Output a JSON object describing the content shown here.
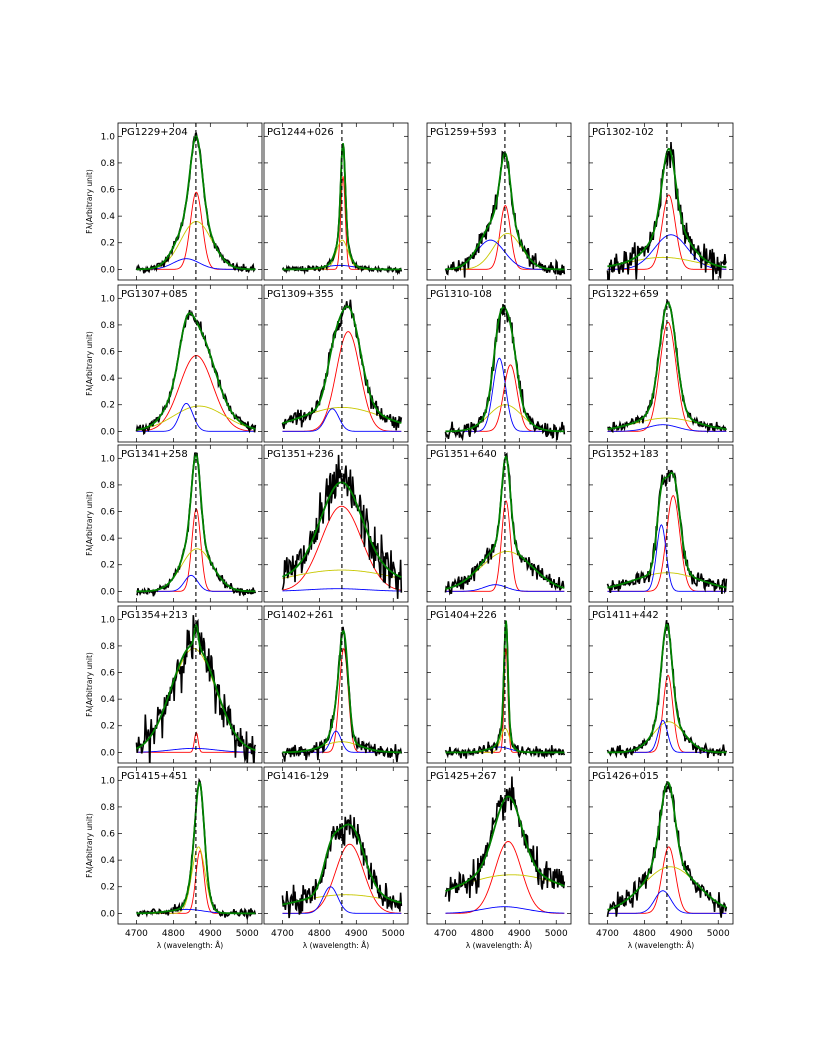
{
  "figure": {
    "ylabel_text": "Fλ(Arbitrary unit)",
    "xlabel_text": "λ (wavelength: Å)"
  },
  "chart_data": {
    "type": "line",
    "layout": "grid of 5 rows by 4 columns of small-multiple panels",
    "xlim": [
      4650,
      5040
    ],
    "ylim": [
      -0.08,
      1.1
    ],
    "xticks": [
      4700,
      4800,
      4900,
      5000
    ],
    "yticks": [
      0.0,
      0.2,
      0.4,
      0.6,
      0.8,
      1.0
    ],
    "reference_line": {
      "x": 4861,
      "style": "dashed",
      "color": "#000000"
    },
    "grid": false,
    "legend": "none",
    "colors": {
      "observed": "#000000",
      "total_fit": "#008000",
      "narrow_component": "#ff0000",
      "broad_component": "#c8c800",
      "blue_component": "#0000ff"
    },
    "panels": [
      {
        "name": "PG1229+204",
        "obs_noise": 0.015,
        "components": [
          {
            "role": "narrow",
            "color": "#ff0000",
            "center": 4862,
            "amp": 0.58,
            "sigma": 16
          },
          {
            "role": "broad",
            "color": "#c8c800",
            "center": 4862,
            "amp": 0.36,
            "sigma": 42
          },
          {
            "role": "blue",
            "color": "#0000ff",
            "center": 4835,
            "amp": 0.08,
            "sigma": 35
          }
        ]
      },
      {
        "name": "PG1244+026",
        "obs_noise": 0.012,
        "components": [
          {
            "role": "narrow",
            "color": "#ff0000",
            "center": 4864,
            "amp": 0.7,
            "sigma": 6
          },
          {
            "role": "broad",
            "color": "#c8c800",
            "center": 4862,
            "amp": 0.22,
            "sigma": 16
          },
          {
            "role": "blue",
            "color": "#0000ff",
            "center": 4855,
            "amp": 0.03,
            "sigma": 40
          }
        ]
      },
      {
        "name": "PG1259+593",
        "obs_noise": 0.03,
        "components": [
          {
            "role": "narrow",
            "color": "#ff0000",
            "center": 4862,
            "amp": 0.48,
            "sigma": 14
          },
          {
            "role": "broad",
            "color": "#c8c800",
            "center": 4868,
            "amp": 0.27,
            "sigma": 38
          },
          {
            "role": "blue",
            "color": "#0000ff",
            "center": 4822,
            "amp": 0.22,
            "sigma": 38
          }
        ]
      },
      {
        "name": "PG1302-102",
        "obs_noise": 0.05,
        "components": [
          {
            "role": "narrow",
            "color": "#ff0000",
            "center": 4866,
            "amp": 0.56,
            "sigma": 18
          },
          {
            "role": "broad",
            "color": "#c8c800",
            "center": 4850,
            "amp": 0.09,
            "sigma": 90
          },
          {
            "role": "blue",
            "color": "#0000ff",
            "center": 4872,
            "amp": 0.26,
            "sigma": 45
          }
        ]
      },
      {
        "name": "PG1307+085",
        "obs_noise": 0.02,
        "components": [
          {
            "role": "narrow",
            "color": "#ff0000",
            "center": 4862,
            "amp": 0.57,
            "sigma": 45
          },
          {
            "role": "broad",
            "color": "#c8c800",
            "center": 4870,
            "amp": 0.19,
            "sigma": 70
          },
          {
            "role": "blue",
            "color": "#0000ff",
            "center": 4835,
            "amp": 0.21,
            "sigma": 18
          }
        ]
      },
      {
        "name": "PG1309+355",
        "obs_noise": 0.03,
        "components": [
          {
            "role": "narrow",
            "color": "#ff0000",
            "center": 4878,
            "amp": 0.75,
            "sigma": 32
          },
          {
            "role": "broad",
            "color": "#c8c800",
            "center": 4862,
            "amp": 0.18,
            "sigma": 110
          },
          {
            "role": "blue",
            "color": "#0000ff",
            "center": 4835,
            "amp": 0.17,
            "sigma": 18
          }
        ]
      },
      {
        "name": "PG1310-108",
        "obs_noise": 0.03,
        "components": [
          {
            "role": "narrow",
            "color": "#ff0000",
            "center": 4876,
            "amp": 0.5,
            "sigma": 18
          },
          {
            "role": "broad",
            "color": "#c8c800",
            "center": 4862,
            "amp": 0.2,
            "sigma": 45
          },
          {
            "role": "blue",
            "color": "#0000ff",
            "center": 4846,
            "amp": 0.55,
            "sigma": 17
          }
        ]
      },
      {
        "name": "PG1322+659",
        "obs_noise": 0.02,
        "components": [
          {
            "role": "narrow",
            "color": "#ff0000",
            "center": 4864,
            "amp": 0.82,
            "sigma": 22
          },
          {
            "role": "broad",
            "color": "#c8c800",
            "center": 4860,
            "amp": 0.1,
            "sigma": 85
          },
          {
            "role": "blue",
            "color": "#0000ff",
            "center": 4850,
            "amp": 0.05,
            "sigma": 40
          }
        ]
      },
      {
        "name": "PG1341+258",
        "obs_noise": 0.015,
        "components": [
          {
            "role": "narrow",
            "color": "#ff0000",
            "center": 4862,
            "amp": 0.62,
            "sigma": 12
          },
          {
            "role": "broad",
            "color": "#c8c800",
            "center": 4864,
            "amp": 0.32,
            "sigma": 42
          },
          {
            "role": "blue",
            "color": "#0000ff",
            "center": 4848,
            "amp": 0.12,
            "sigma": 18
          }
        ]
      },
      {
        "name": "PG1351+236",
        "obs_noise": 0.09,
        "components": [
          {
            "role": "narrow",
            "color": "#ff0000",
            "center": 4860,
            "amp": 0.64,
            "sigma": 55
          },
          {
            "role": "broad",
            "color": "#c8c800",
            "center": 4860,
            "amp": 0.16,
            "sigma": 160
          },
          {
            "role": "blue",
            "color": "#0000ff",
            "center": 4850,
            "amp": 0.02,
            "sigma": 80
          }
        ]
      },
      {
        "name": "PG1351+640",
        "obs_noise": 0.03,
        "components": [
          {
            "role": "narrow",
            "color": "#ff0000",
            "center": 4864,
            "amp": 0.68,
            "sigma": 12
          },
          {
            "role": "broad",
            "color": "#c8c800",
            "center": 4866,
            "amp": 0.3,
            "sigma": 70
          },
          {
            "role": "blue",
            "color": "#0000ff",
            "center": 4835,
            "amp": 0.05,
            "sigma": 30
          }
        ]
      },
      {
        "name": "PG1352+183",
        "obs_noise": 0.03,
        "components": [
          {
            "role": "narrow",
            "color": "#ff0000",
            "center": 4878,
            "amp": 0.72,
            "sigma": 18
          },
          {
            "role": "broad",
            "color": "#c8c800",
            "center": 4862,
            "amp": 0.14,
            "sigma": 90
          },
          {
            "role": "blue",
            "color": "#0000ff",
            "center": 4846,
            "amp": 0.5,
            "sigma": 13
          }
        ]
      },
      {
        "name": "PG1354+213",
        "obs_noise": 0.08,
        "components": [
          {
            "role": "narrow",
            "color": "#ff0000",
            "center": 4862,
            "amp": 0.15,
            "sigma": 5
          },
          {
            "role": "broad",
            "color": "#c8c800",
            "center": 4855,
            "amp": 0.78,
            "sigma": 60
          },
          {
            "role": "blue",
            "color": "#0000ff",
            "center": 4855,
            "amp": 0.03,
            "sigma": 60
          }
        ]
      },
      {
        "name": "PG1402+261",
        "obs_noise": 0.025,
        "components": [
          {
            "role": "narrow",
            "color": "#ff0000",
            "center": 4866,
            "amp": 0.78,
            "sigma": 12
          },
          {
            "role": "broad",
            "color": "#c8c800",
            "center": 4860,
            "amp": 0.08,
            "sigma": 50
          },
          {
            "role": "blue",
            "color": "#0000ff",
            "center": 4845,
            "amp": 0.16,
            "sigma": 14
          }
        ]
      },
      {
        "name": "PG1404+226",
        "obs_noise": 0.02,
        "components": [
          {
            "role": "narrow",
            "color": "#ff0000",
            "center": 4864,
            "amp": 0.78,
            "sigma": 5
          },
          {
            "role": "broad",
            "color": "#c8c800",
            "center": 4862,
            "amp": 0.18,
            "sigma": 12
          },
          {
            "role": "blue",
            "color": "#0000ff",
            "center": 4845,
            "amp": 0.04,
            "sigma": 30
          }
        ]
      },
      {
        "name": "PG1411+442",
        "obs_noise": 0.02,
        "components": [
          {
            "role": "narrow",
            "color": "#ff0000",
            "center": 4864,
            "amp": 0.58,
            "sigma": 13
          },
          {
            "role": "broad",
            "color": "#c8c800",
            "center": 4866,
            "amp": 0.23,
            "sigma": 42
          },
          {
            "role": "blue",
            "color": "#0000ff",
            "center": 4850,
            "amp": 0.24,
            "sigma": 13
          }
        ]
      },
      {
        "name": "PG1415+451",
        "obs_noise": 0.015,
        "components": [
          {
            "role": "narrow",
            "color": "#ff0000",
            "center": 4872,
            "amp": 0.47,
            "sigma": 11
          },
          {
            "role": "broad",
            "color": "#c8c800",
            "center": 4868,
            "amp": 0.5,
            "sigma": 18
          },
          {
            "role": "blue",
            "color": "#0000ff",
            "center": 4835,
            "amp": 0.03,
            "sigma": 45
          }
        ]
      },
      {
        "name": "PG1416-129",
        "obs_noise": 0.05,
        "components": [
          {
            "role": "narrow",
            "color": "#ff0000",
            "center": 4882,
            "amp": 0.52,
            "sigma": 38
          },
          {
            "role": "broad",
            "color": "#c8c800",
            "center": 4872,
            "amp": 0.14,
            "sigma": 140
          },
          {
            "role": "blue",
            "color": "#0000ff",
            "center": 4830,
            "amp": 0.2,
            "sigma": 20
          }
        ]
      },
      {
        "name": "PG1425+267",
        "obs_noise": 0.06,
        "components": [
          {
            "role": "narrow",
            "color": "#ff0000",
            "center": 4870,
            "amp": 0.54,
            "sigma": 36
          },
          {
            "role": "broad",
            "color": "#c8c800",
            "center": 4880,
            "amp": 0.29,
            "sigma": 170
          },
          {
            "role": "blue",
            "color": "#0000ff",
            "center": 4860,
            "amp": 0.05,
            "sigma": 60
          }
        ]
      },
      {
        "name": "PG1426+015",
        "obs_noise": 0.04,
        "components": [
          {
            "role": "narrow",
            "color": "#ff0000",
            "center": 4866,
            "amp": 0.5,
            "sigma": 18
          },
          {
            "role": "broad",
            "color": "#c8c800",
            "center": 4870,
            "amp": 0.35,
            "sigma": 75
          },
          {
            "role": "blue",
            "color": "#0000ff",
            "center": 4850,
            "amp": 0.17,
            "sigma": 22
          }
        ]
      }
    ]
  }
}
